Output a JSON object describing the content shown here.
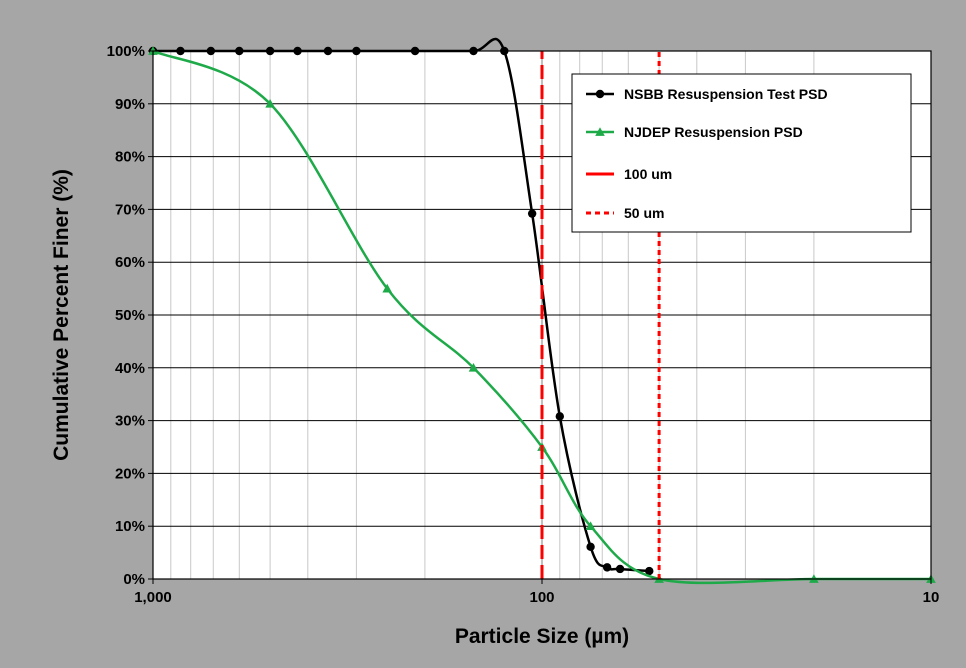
{
  "chart_data": {
    "type": "line",
    "xlabel": "Particle Size (µm)",
    "ylabel": "Cumulative Percent Finer (%)",
    "x_scale": "log",
    "x_reversed": true,
    "xlim": [
      1000,
      10
    ],
    "ylim": [
      0,
      100
    ],
    "x_tick_labels": [
      "1,000",
      "100",
      "10"
    ],
    "x_ticks": [
      1000,
      100,
      10
    ],
    "y_ticks": [
      0,
      10,
      20,
      30,
      40,
      50,
      60,
      70,
      80,
      90,
      100
    ],
    "y_tick_labels": [
      "0%",
      "10%",
      "20%",
      "30%",
      "40%",
      "50%",
      "60%",
      "70%",
      "80%",
      "90%",
      "100%"
    ],
    "grid": true,
    "legend_position": "top-right",
    "background_color": "#a6a6a6",
    "plot_background_color": "#ffffff",
    "series": [
      {
        "name": "NSBB Resuspension Test PSD",
        "marker": "circle",
        "color": "#000000",
        "x": [
          1000,
          850,
          710,
          600,
          500,
          425,
          355,
          300,
          212,
          150,
          125,
          106,
          90,
          75,
          68,
          63,
          53
        ],
        "y": [
          100,
          100,
          100,
          100,
          100,
          100,
          100,
          100,
          100,
          100,
          100,
          69.2,
          30.8,
          6.1,
          2.2,
          1.9,
          1.5
        ]
      },
      {
        "name": "NJDEP Resuspension PSD",
        "marker": "triangle",
        "color": "#1faa4a",
        "x": [
          1000,
          500,
          250,
          150,
          100,
          75,
          50,
          20,
          10
        ],
        "y": [
          100,
          90,
          55,
          40,
          25,
          10,
          0,
          0,
          0
        ]
      },
      {
        "name": "100 um",
        "style": "dashed-long",
        "color": "#ff0000",
        "x": [
          100,
          100
        ],
        "y": [
          0,
          100
        ]
      },
      {
        "name": "50 um",
        "style": "dashed-short",
        "color": "#ff0000",
        "x": [
          50,
          50
        ],
        "y": [
          0,
          100
        ]
      }
    ]
  }
}
